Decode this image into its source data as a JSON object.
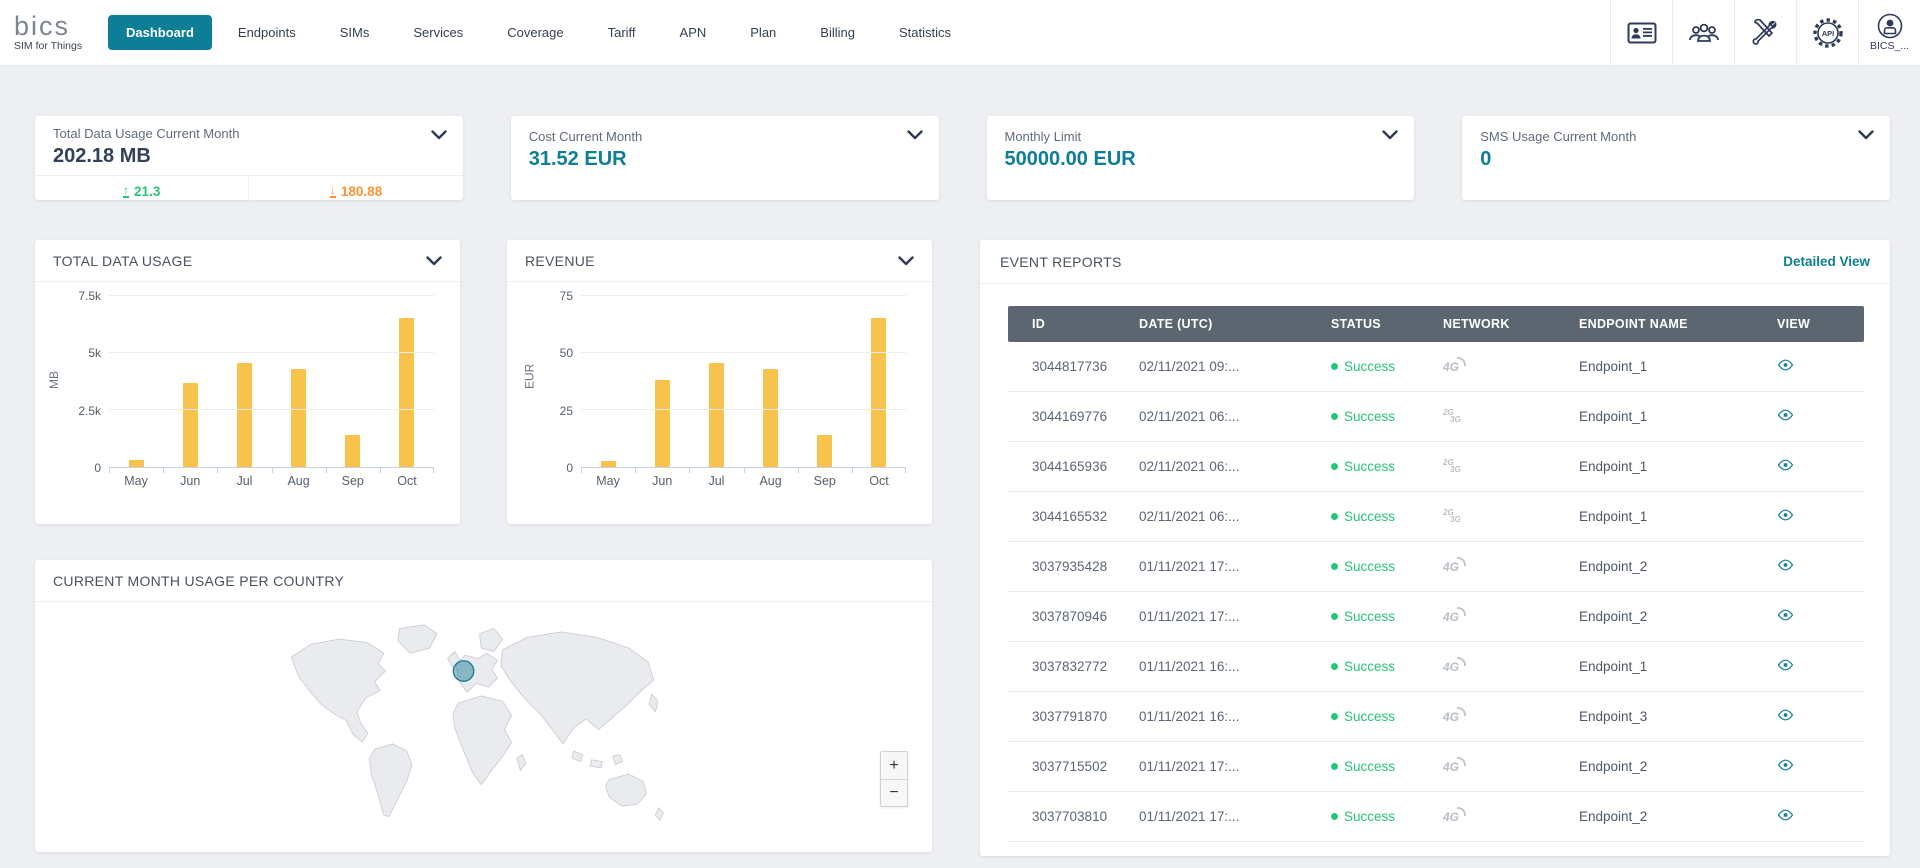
{
  "brand": {
    "name": "bics",
    "tagline": "SIM for Things"
  },
  "nav": {
    "items": [
      {
        "label": "Dashboard",
        "active": true
      },
      {
        "label": "Endpoints",
        "active": false
      },
      {
        "label": "SIMs",
        "active": false
      },
      {
        "label": "Services",
        "active": false
      },
      {
        "label": "Coverage",
        "active": false
      },
      {
        "label": "Tariff",
        "active": false
      },
      {
        "label": "APN",
        "active": false
      },
      {
        "label": "Plan",
        "active": false
      },
      {
        "label": "Billing",
        "active": false
      },
      {
        "label": "Statistics",
        "active": false
      }
    ]
  },
  "topbar": {
    "icons": [
      "contacts-card-icon",
      "user-groups-icon",
      "tools-icon",
      "api-settings-icon"
    ],
    "profile_label": "BICS_..."
  },
  "summary_cards": [
    {
      "title": "Total Data Usage Current Month",
      "value": "202.18 MB",
      "upload": "21.3",
      "download": "180.88"
    },
    {
      "title": "Cost Current Month",
      "value": "31.52 EUR"
    },
    {
      "title": "Monthly Limit",
      "value": "50000.00 EUR"
    },
    {
      "title": "SMS Usage Current Month",
      "value": "0"
    }
  ],
  "chart_data": [
    {
      "type": "bar",
      "title": "TOTAL DATA USAGE",
      "ylabel": "MB",
      "categories": [
        "May",
        "Jun",
        "Jul",
        "Aug",
        "Sep",
        "Oct"
      ],
      "values": [
        300,
        3700,
        4550,
        4300,
        1400,
        6550
      ],
      "ylim": [
        0,
        7500
      ],
      "yticks": [
        {
          "label": "7.5k",
          "value": 7500
        },
        {
          "label": "5k",
          "value": 5000
        },
        {
          "label": "2.5k",
          "value": 2500
        },
        {
          "label": "0",
          "value": 0
        }
      ],
      "grid": true,
      "legend": false,
      "bar_color": "#f7c34c"
    },
    {
      "type": "bar",
      "title": "REVENUE",
      "ylabel": "EUR",
      "categories": [
        "May",
        "Jun",
        "Jul",
        "Aug",
        "Sep",
        "Oct"
      ],
      "values": [
        2.5,
        38,
        45.5,
        43,
        14,
        65.5
      ],
      "ylim": [
        0,
        75
      ],
      "yticks": [
        {
          "label": "75",
          "value": 75
        },
        {
          "label": "50",
          "value": 50
        },
        {
          "label": "25",
          "value": 25
        },
        {
          "label": "0",
          "value": 0
        }
      ],
      "grid": true,
      "legend": false,
      "bar_color": "#f7c34c"
    }
  ],
  "events": {
    "title": "EVENT REPORTS",
    "link": "Detailed View",
    "columns": [
      "ID",
      "DATE (UTC)",
      "STATUS",
      "NETWORK",
      "ENDPOINT NAME",
      "VIEW"
    ],
    "rows": [
      {
        "id": "3044817736",
        "date": "02/11/2021 09:...",
        "status": "Success",
        "network": "4G",
        "endpoint": "Endpoint_1"
      },
      {
        "id": "3044169776",
        "date": "02/11/2021 06:...",
        "status": "Success",
        "network": "2G3G",
        "endpoint": "Endpoint_1"
      },
      {
        "id": "3044165936",
        "date": "02/11/2021 06:...",
        "status": "Success",
        "network": "2G3G",
        "endpoint": "Endpoint_1"
      },
      {
        "id": "3044165532",
        "date": "02/11/2021 06:...",
        "status": "Success",
        "network": "2G3G",
        "endpoint": "Endpoint_1"
      },
      {
        "id": "3037935428",
        "date": "01/11/2021 17:...",
        "status": "Success",
        "network": "4G",
        "endpoint": "Endpoint_2"
      },
      {
        "id": "3037870946",
        "date": "01/11/2021 17:...",
        "status": "Success",
        "network": "4G",
        "endpoint": "Endpoint_2"
      },
      {
        "id": "3037832772",
        "date": "01/11/2021 16:...",
        "status": "Success",
        "network": "4G",
        "endpoint": "Endpoint_1"
      },
      {
        "id": "3037791870",
        "date": "01/11/2021 16:...",
        "status": "Success",
        "network": "4G",
        "endpoint": "Endpoint_3"
      },
      {
        "id": "3037715502",
        "date": "01/11/2021 17:...",
        "status": "Success",
        "network": "4G",
        "endpoint": "Endpoint_2"
      },
      {
        "id": "3037703810",
        "date": "01/11/2021 17:...",
        "status": "Success",
        "network": "4G",
        "endpoint": "Endpoint_2"
      }
    ]
  },
  "map_panel": {
    "title": "CURRENT MONTH USAGE PER COUNTRY",
    "zoom_in": "+",
    "zoom_out": "−",
    "marker_region": "Western Europe"
  },
  "colors": {
    "accent": "#0d7e95",
    "navy": "#32405a",
    "green": "#27c479",
    "orange": "#ff9332",
    "bar": "#f7c34c",
    "thead": "#5b6670",
    "textgray": "#5c6b7a",
    "iconnavy": "#2e3a59"
  }
}
